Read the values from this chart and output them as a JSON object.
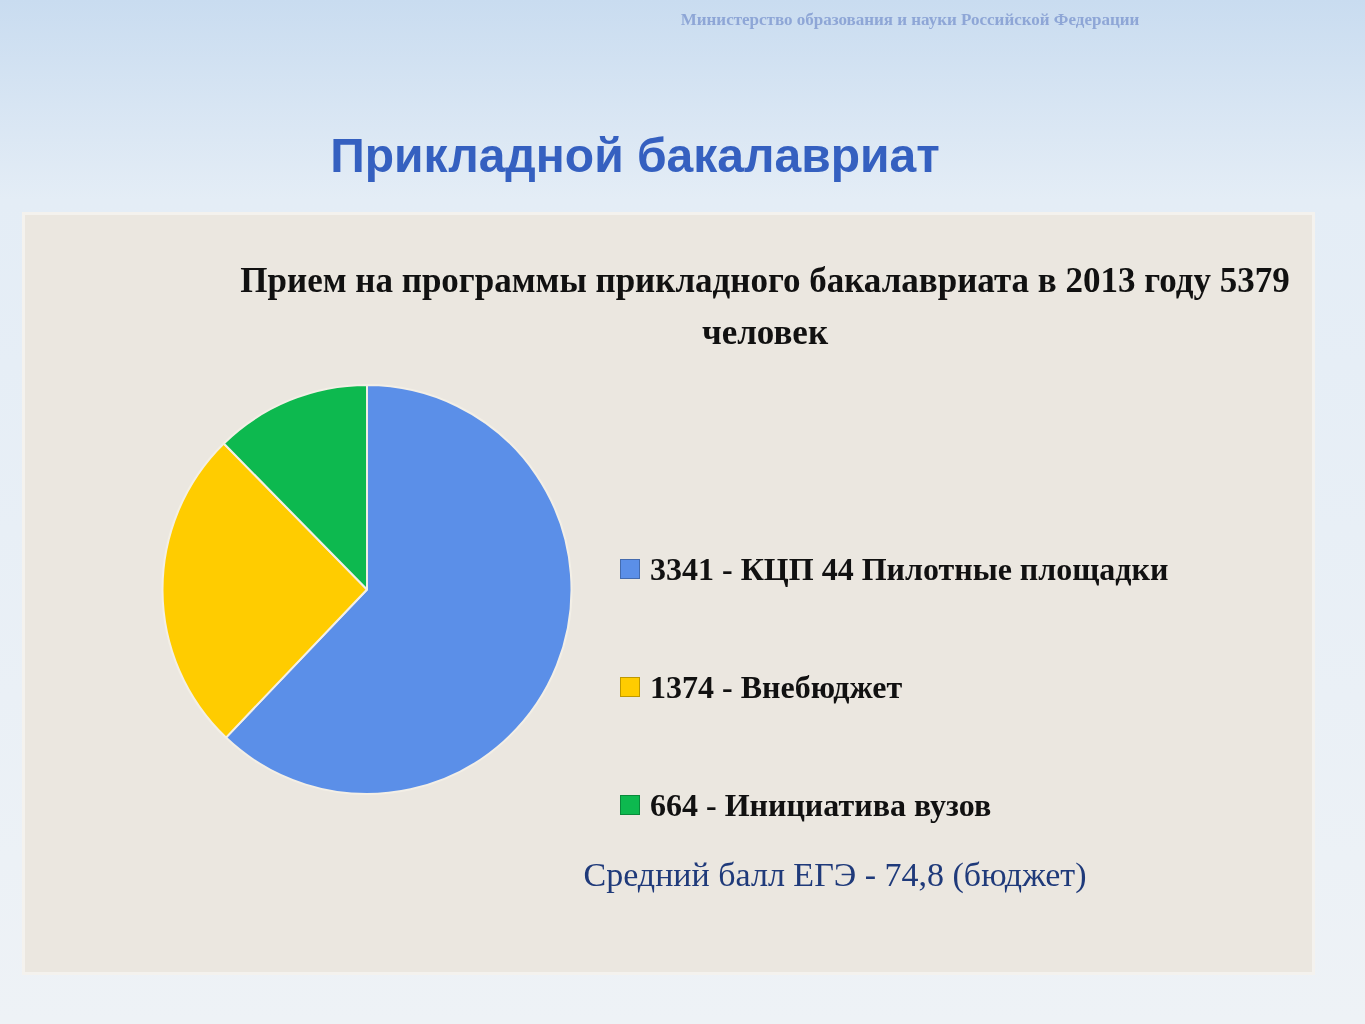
{
  "chart_data": {
    "type": "pie",
    "title": "Прикладной бакалавриат",
    "subtitle": "Прием на программы прикладного бакалавриата в 2013 году 5379 человек",
    "categories": [
      "3341 - КЦП 44 Пилотные площадки",
      "1374 - Внебюджет",
      "664 - Инициатива вузов"
    ],
    "values": [
      3341,
      1374,
      664
    ],
    "colors": [
      "#5b8fe8",
      "#ffcc00",
      "#0db94f"
    ],
    "legend": "right",
    "annotations": [
      "Министерство образования и науки Российской Федерации",
      "Средний балл ЕГЭ - 74,8 (бюджет)"
    ]
  }
}
